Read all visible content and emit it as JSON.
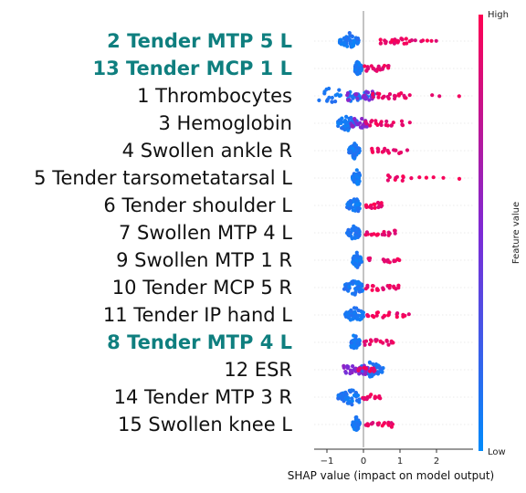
{
  "chart_data": {
    "type": "scatter",
    "subtype": "shap-beeswarm",
    "xlabel": "SHAP value (impact on model output)",
    "xlim": [
      -1.35,
      3.0
    ],
    "xticks": [
      -1,
      0,
      1,
      2
    ],
    "xtick_labels": [
      "−1",
      "0",
      "1",
      "2"
    ],
    "zero_line": true,
    "colorbar": {
      "label": "Feature value",
      "high_label": "High",
      "low_label": "Low",
      "low_color": "#008bfb",
      "high_color": "#ff0052"
    },
    "highlight_color": "#0f7f7f",
    "features": [
      {
        "name": "2 Tender MTP 5 L",
        "highlighted": true,
        "low": {
          "min": -0.65,
          "max": -0.1,
          "center": -0.38
        },
        "high": {
          "values": [
            0.45,
            0.6,
            0.75,
            0.85,
            0.95,
            1.05,
            1.15,
            1.25,
            1.35,
            1.45,
            1.55,
            1.65,
            1.75,
            1.85,
            2.0
          ]
        }
      },
      {
        "name": "13 Tender MCP 1 L",
        "highlighted": true,
        "low": {
          "min": -0.25,
          "max": -0.05,
          "center": -0.15
        },
        "high": {
          "values": [
            0.05,
            0.15,
            0.25,
            0.35,
            0.45,
            0.55,
            0.65
          ]
        }
      },
      {
        "name": "1 Thrombocytes",
        "highlighted": false,
        "low": {
          "min": -1.25,
          "max": 0.3,
          "center": -0.85
        },
        "mid": {
          "values": [
            -0.4,
            -0.2,
            0.0,
            0.1,
            0.2
          ]
        },
        "high": {
          "values": [
            0.25,
            0.4,
            0.55,
            0.7,
            0.85,
            1.0,
            1.15,
            1.3,
            1.9,
            2.1,
            2.6
          ]
        }
      },
      {
        "name": "3 Hemoglobin",
        "highlighted": false,
        "low": {
          "min": -0.7,
          "max": -0.15,
          "center": -0.45
        },
        "mid": {
          "values": [
            -0.3,
            -0.2,
            -0.1,
            0.0,
            0.1
          ]
        },
        "high": {
          "values": [
            0.05,
            0.2,
            0.35,
            0.5,
            0.65,
            0.8,
            1.05,
            1.3
          ]
        }
      },
      {
        "name": "4 Swollen ankle R",
        "highlighted": false,
        "low": {
          "min": -0.4,
          "max": -0.1,
          "center": -0.25
        },
        "high": {
          "values": [
            0.25,
            0.4,
            0.55,
            0.7,
            0.85,
            1.0,
            1.2
          ]
        }
      },
      {
        "name": "5 Tender tarsometatarsal L",
        "highlighted": false,
        "low": {
          "min": -0.3,
          "max": -0.1,
          "center": -0.18
        },
        "high": {
          "values": [
            0.7,
            0.9,
            1.1,
            1.3,
            1.5,
            1.7,
            1.9,
            2.2,
            2.6
          ]
        }
      },
      {
        "name": "6 Tender shoulder L",
        "highlighted": false,
        "low": {
          "min": -0.45,
          "max": -0.1,
          "center": -0.22
        },
        "high": {
          "values": [
            0.1,
            0.2,
            0.3,
            0.4,
            0.5
          ]
        }
      },
      {
        "name": "7 Swollen MTP 4 L",
        "highlighted": false,
        "low": {
          "min": -0.45,
          "max": -0.1,
          "center": -0.25
        },
        "high": {
          "values": [
            0.1,
            0.25,
            0.4,
            0.55,
            0.7,
            0.85
          ]
        }
      },
      {
        "name": "9 Swollen MTP 1 R",
        "highlighted": false,
        "low": {
          "min": -0.3,
          "max": -0.05,
          "center": -0.18
        },
        "high": {
          "values": [
            0.15,
            0.55,
            0.7,
            0.85,
            0.95
          ]
        }
      },
      {
        "name": "10 Tender MCP 5 R",
        "highlighted": false,
        "low": {
          "min": -0.55,
          "max": 0.0,
          "center": -0.25
        },
        "high": {
          "values": [
            0.1,
            0.25,
            0.4,
            0.55,
            0.7,
            0.85,
            0.95
          ]
        }
      },
      {
        "name": "11 Tender IP hand L",
        "highlighted": false,
        "low": {
          "min": -0.5,
          "max": 0.0,
          "center": -0.2
        },
        "high": {
          "values": [
            0.1,
            0.25,
            0.4,
            0.55,
            0.7,
            0.9,
            1.1,
            1.25
          ]
        }
      },
      {
        "name": "8 Tender MTP 4 L",
        "highlighted": true,
        "low": {
          "min": -0.35,
          "max": -0.1,
          "center": -0.25
        },
        "high": {
          "values": [
            0.05,
            0.2,
            0.35,
            0.5,
            0.65,
            0.8
          ]
        }
      },
      {
        "name": "12 ESR",
        "highlighted": false,
        "low": {
          "min": -0.1,
          "max": 0.55,
          "center": 0.2
        },
        "mid": {
          "values": [
            -0.5,
            -0.4,
            -0.3,
            -0.2,
            -0.1,
            0.0,
            0.1
          ]
        },
        "high": {
          "values": [
            -0.1,
            0.05,
            0.2,
            0.3
          ]
        }
      },
      {
        "name": "14 Tender MTP 3 R",
        "highlighted": false,
        "low": {
          "min": -0.7,
          "max": -0.1,
          "center": -0.3
        },
        "high": {
          "values": [
            0.0,
            0.1,
            0.2,
            0.3,
            0.45
          ]
        }
      },
      {
        "name": "15 Swollen knee L",
        "highlighted": false,
        "low": {
          "min": -0.3,
          "max": -0.1,
          "center": -0.2
        },
        "high": {
          "values": [
            0.1,
            0.25,
            0.4,
            0.55,
            0.7,
            0.8
          ]
        }
      }
    ]
  }
}
